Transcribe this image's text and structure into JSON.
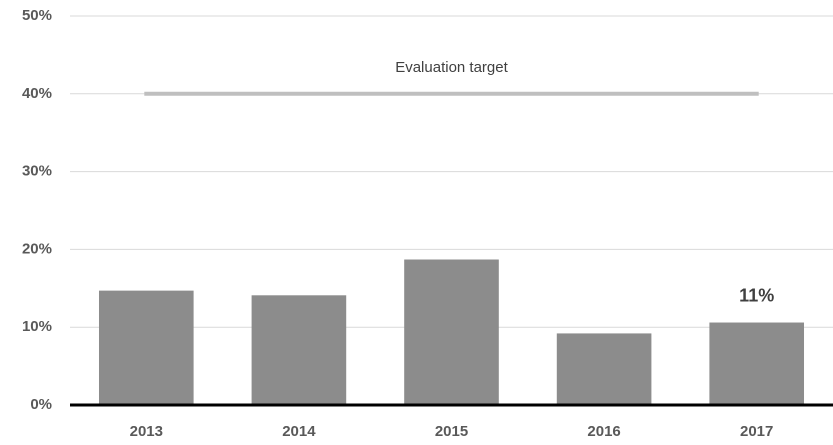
{
  "chart_data": {
    "type": "bar",
    "categories": [
      "2013",
      "2014",
      "2015",
      "2016",
      "2017"
    ],
    "values": [
      14.7,
      14.1,
      18.7,
      9.2,
      10.6
    ],
    "value_labels": [
      null,
      null,
      null,
      null,
      "11%"
    ],
    "color": "#8c8c8c",
    "ylim": [
      0,
      50
    ],
    "yticks": [
      {
        "value": 0,
        "label": "0%"
      },
      {
        "value": 10,
        "label": "10%"
      },
      {
        "value": 20,
        "label": "20%"
      },
      {
        "value": 30,
        "label": "30%"
      },
      {
        "value": 40,
        "label": "40%"
      },
      {
        "value": 50,
        "label": "50%"
      }
    ],
    "grid": true,
    "target": {
      "value": 40,
      "label": "Evaluation target",
      "color": "#bfbfbf"
    }
  }
}
